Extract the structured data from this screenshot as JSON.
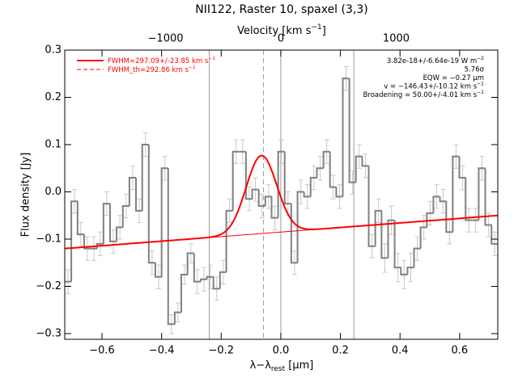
{
  "chart_data": {
    "type": "histogram",
    "title": "NII122, Raster 10, spaxel (3,3)",
    "x_label": [
      "λ−λ",
      "rest",
      " [μm]"
    ],
    "y_label": "Flux density [Jy]",
    "top_label": [
      "Velocity [km s",
      "−1",
      "]"
    ],
    "xlim": [
      -0.725,
      0.728
    ],
    "ylim": [
      -0.312,
      0.3
    ],
    "toplim": [
      -1874,
      1881
    ],
    "xticks": [
      {
        "value": -0.6,
        "label": "−0.6"
      },
      {
        "value": -0.4,
        "label": "−0.4"
      },
      {
        "value": -0.2,
        "label": "−0.2"
      },
      {
        "value": 0.0,
        "label": "0.0"
      },
      {
        "value": 0.2,
        "label": "0.2"
      },
      {
        "value": 0.4,
        "label": "0.4"
      },
      {
        "value": 0.6,
        "label": "0.6"
      }
    ],
    "yticks": [
      {
        "value": -0.3,
        "label": "−0.3"
      },
      {
        "value": -0.2,
        "label": "−0.2"
      },
      {
        "value": -0.1,
        "label": "−0.1"
      },
      {
        "value": 0.0,
        "label": "0.0"
      },
      {
        "value": 0.1,
        "label": "0.1"
      },
      {
        "value": 0.2,
        "label": "0.2"
      },
      {
        "value": 0.3,
        "label": "0.3"
      }
    ],
    "topticks": [
      {
        "value": -1000,
        "label": "−1000"
      },
      0,
      1000
    ],
    "color": "#808080",
    "error_color": "#c8c8c8",
    "x": [
      -0.714,
      -0.692,
      -0.671,
      -0.649,
      -0.627,
      -0.606,
      -0.584,
      -0.562,
      -0.54,
      -0.519,
      -0.497,
      -0.475,
      -0.454,
      -0.432,
      -0.41,
      -0.389,
      -0.367,
      -0.345,
      -0.323,
      -0.302,
      -0.28,
      -0.258,
      -0.237,
      -0.215,
      -0.193,
      -0.172,
      -0.15,
      -0.128,
      -0.106,
      -0.085,
      -0.063,
      -0.041,
      -0.02,
      0.002,
      0.024,
      0.046,
      0.067,
      0.089,
      0.111,
      0.132,
      0.154,
      0.176,
      0.197,
      0.219,
      0.241,
      0.263,
      0.284,
      0.306,
      0.328,
      0.349,
      0.371,
      0.393,
      0.414,
      0.436,
      0.458,
      0.48,
      0.501,
      0.523,
      0.545,
      0.566,
      0.588,
      0.61,
      0.631,
      0.653,
      0.675,
      0.697,
      0.718
    ],
    "values": [
      -0.19,
      -0.02,
      -0.09,
      -0.12,
      -0.12,
      -0.11,
      -0.025,
      -0.105,
      -0.075,
      -0.03,
      0.03,
      -0.04,
      0.1,
      -0.15,
      -0.18,
      0.05,
      -0.28,
      -0.255,
      -0.175,
      -0.13,
      -0.19,
      -0.185,
      -0.18,
      -0.205,
      -0.17,
      -0.04,
      0.085,
      0.085,
      -0.015,
      0.005,
      -0.03,
      -0.01,
      -0.055,
      0.085,
      -0.025,
      -0.15,
      0.0,
      -0.01,
      0.03,
      0.05,
      0.085,
      0.01,
      -0.01,
      0.24,
      0.02,
      0.075,
      0.055,
      -0.115,
      -0.04,
      -0.14,
      -0.06,
      -0.16,
      -0.175,
      -0.16,
      -0.12,
      -0.075,
      -0.045,
      -0.01,
      -0.02,
      -0.085,
      0.075,
      0.03,
      -0.06,
      -0.06,
      0.05,
      -0.07,
      -0.11
    ],
    "errors": [
      0.025,
      0.025,
      0.025,
      0.025,
      0.025,
      0.025,
      0.025,
      0.025,
      0.025,
      0.025,
      0.025,
      0.025,
      0.025,
      0.025,
      0.025,
      0.025,
      0.02,
      0.02,
      0.02,
      0.02,
      0.025,
      0.025,
      0.025,
      0.025,
      0.025,
      0.025,
      0.025,
      0.025,
      0.025,
      0.025,
      0.025,
      0.025,
      0.025,
      0.025,
      0.025,
      0.025,
      0.025,
      0.025,
      0.025,
      0.025,
      0.025,
      0.025,
      0.025,
      0.025,
      0.025,
      0.025,
      0.025,
      0.025,
      0.025,
      0.03,
      0.03,
      0.03,
      0.03,
      0.03,
      0.025,
      0.025,
      0.025,
      0.025,
      0.025,
      0.025,
      0.025,
      0.025,
      0.025,
      0.025,
      0.025,
      0.025,
      0.025
    ],
    "fit": {
      "color": "#ff0000",
      "center": -0.065,
      "fwhm": 0.121,
      "peak": 0.165,
      "continuum": [
        -0.12,
        -0.05
      ]
    },
    "vlines": [
      {
        "x": -0.24,
        "style": "solid"
      },
      {
        "x": -0.058,
        "style": "dashed"
      },
      {
        "x": 0.0,
        "style": "solid"
      },
      {
        "x": 0.245,
        "style": "solid"
      }
    ],
    "legend": [
      {
        "text": [
          "FWHM=297.09+/-23.85 km s",
          "−1"
        ],
        "style": "solid"
      },
      {
        "text": [
          "FWHM_th=292.86 km s",
          "−1"
        ],
        "style": "dashed"
      }
    ],
    "annotations": [
      [
        "3.82e-18+/-6.64e-19 W m",
        "−2"
      ],
      [
        "5.76σ",
        ""
      ],
      [
        "EQW = −0.27 μm",
        ""
      ],
      [
        "v = −146.43+/-10.12 km s",
        "−1"
      ],
      [
        "Broadening = 50.00+/-4.01 km s",
        "−1"
      ]
    ]
  }
}
